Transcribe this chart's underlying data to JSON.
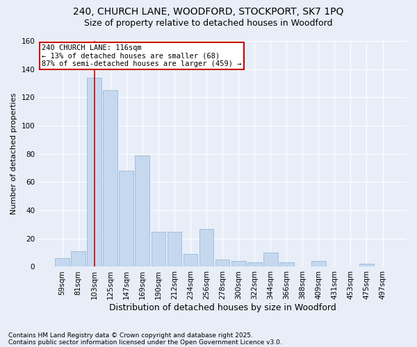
{
  "title": "240, CHURCH LANE, WOODFORD, STOCKPORT, SK7 1PQ",
  "subtitle": "Size of property relative to detached houses in Woodford",
  "xlabel": "Distribution of detached houses by size in Woodford",
  "ylabel": "Number of detached properties",
  "annotation_title": "240 CHURCH LANE: 116sqm",
  "annotation_line1": "← 13% of detached houses are smaller (68)",
  "annotation_line2": "87% of semi-detached houses are larger (459) →",
  "vline_color": "#cc0000",
  "annotation_box_color": "#cc0000",
  "bar_color": "#c5d8ee",
  "bar_edge_color": "#99b8d8",
  "categories": [
    "59sqm",
    "81sqm",
    "103sqm",
    "125sqm",
    "147sqm",
    "169sqm",
    "190sqm",
    "212sqm",
    "234sqm",
    "256sqm",
    "278sqm",
    "300sqm",
    "322sqm",
    "344sqm",
    "366sqm",
    "388sqm",
    "409sqm",
    "431sqm",
    "453sqm",
    "475sqm",
    "497sqm"
  ],
  "values": [
    6,
    11,
    134,
    125,
    68,
    79,
    25,
    25,
    9,
    27,
    5,
    4,
    3,
    10,
    3,
    0,
    4,
    0,
    0,
    2,
    0
  ],
  "vline_index": 2.0,
  "ylim": [
    0,
    160
  ],
  "yticks": [
    0,
    20,
    40,
    60,
    80,
    100,
    120,
    140,
    160
  ],
  "footnote1": "Contains HM Land Registry data © Crown copyright and database right 2025.",
  "footnote2": "Contains public sector information licensed under the Open Government Licence v3.0.",
  "bg_color": "#e8eef8",
  "plot_bg_color": "#e8eef8",
  "grid_color": "#ffffff",
  "title_fontsize": 10,
  "subtitle_fontsize": 9,
  "ylabel_fontsize": 8,
  "xlabel_fontsize": 9,
  "tick_fontsize": 7.5,
  "annotation_fontsize": 7.5,
  "footnote_fontsize": 6.5
}
